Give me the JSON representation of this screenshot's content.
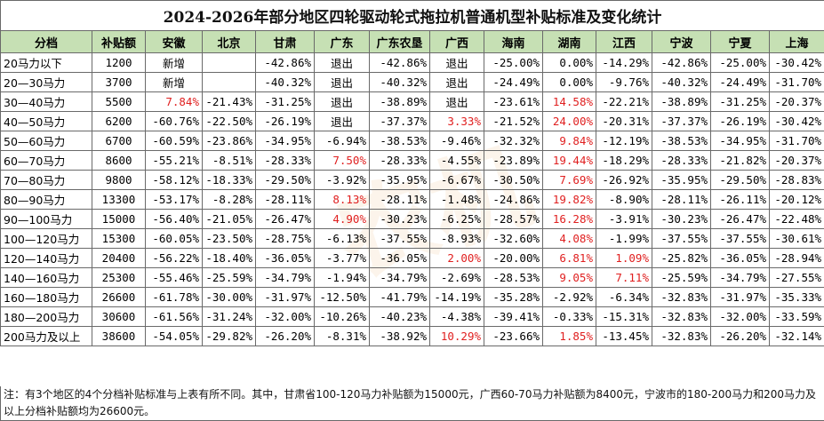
{
  "title": "2024-2026年部分地区四轮驱动轮式拖拉机普通机型补贴标准及变化统计",
  "watermark": "农机",
  "headers": [
    "分档",
    "补贴额",
    "安徽",
    "北京",
    "甘肃",
    "广东",
    "广东农垦",
    "广西",
    "海南",
    "湖南",
    "江西",
    "宁波",
    "宁夏",
    "上海"
  ],
  "rows": [
    [
      "20马力以下",
      "1200",
      "新增",
      "",
      "-42.86%",
      "退出",
      "-42.86%",
      "退出",
      "-25.00%",
      "0.00%",
      "-14.29%",
      "-42.86%",
      "-25.00%",
      "-30.42%"
    ],
    [
      "20—30马力",
      "3700",
      "新增",
      "",
      "-40.32%",
      "退出",
      "-40.32%",
      "退出",
      "-24.49%",
      "0.00%",
      "-9.76%",
      "-40.32%",
      "-24.49%",
      "-31.70%"
    ],
    [
      "30—40马力",
      "5500",
      "7.84%",
      "-21.43%",
      "-31.25%",
      "退出",
      "-38.89%",
      "退出",
      "-23.61%",
      "14.58%",
      "-22.21%",
      "-38.89%",
      "-31.25%",
      "-20.37%"
    ],
    [
      "40—50马力",
      "6200",
      "-60.76%",
      "-22.50%",
      "-26.19%",
      "退出",
      "-37.37%",
      "3.33%",
      "-21.52%",
      "24.00%",
      "-20.31%",
      "-37.37%",
      "-26.19%",
      "-30.42%"
    ],
    [
      "50—60马力",
      "6700",
      "-60.59%",
      "-23.86%",
      "-34.95%",
      "-6.94%",
      "-38.53%",
      "-9.46%",
      "-32.32%",
      "9.84%",
      "-12.19%",
      "-38.53%",
      "-34.95%",
      "-31.70%"
    ],
    [
      "60—70马力",
      "8600",
      "-55.21%",
      "-8.51%",
      "-28.33%",
      "7.50%",
      "-28.33%",
      "-4.55%",
      "-23.89%",
      "19.44%",
      "-18.29%",
      "-28.33%",
      "-21.82%",
      "-20.37%"
    ],
    [
      "70—80马力",
      "9800",
      "-58.12%",
      "-18.33%",
      "-29.50%",
      "-3.92%",
      "-35.95%",
      "-6.67%",
      "-30.50%",
      "7.69%",
      "-26.92%",
      "-35.95%",
      "-29.50%",
      "-28.83%"
    ],
    [
      "80—90马力",
      "13300",
      "-53.17%",
      "-8.28%",
      "-28.11%",
      "8.13%",
      "-28.11%",
      "-1.48%",
      "-24.86%",
      "19.82%",
      "-8.90%",
      "-28.11%",
      "-26.11%",
      "-20.12%"
    ],
    [
      "90—100马力",
      "15000",
      "-56.40%",
      "-21.05%",
      "-26.47%",
      "4.90%",
      "-30.23%",
      "-6.25%",
      "-28.57%",
      "16.28%",
      "-3.91%",
      "-30.23%",
      "-26.47%",
      "-22.48%"
    ],
    [
      "100—120马力",
      "15300",
      "-60.05%",
      "-23.50%",
      "-28.75%",
      "-6.13%",
      "-37.55%",
      "-8.93%",
      "-32.60%",
      "4.08%",
      "-1.99%",
      "-37.55%",
      "-37.55%",
      "-30.61%"
    ],
    [
      "120—140马力",
      "20400",
      "-56.22%",
      "-18.40%",
      "-36.05%",
      "-3.77%",
      "-36.05%",
      "2.00%",
      "-20.00%",
      "6.81%",
      "1.09%",
      "-25.82%",
      "-36.05%",
      "-28.94%"
    ],
    [
      "140—160马力",
      "25300",
      "-55.46%",
      "-25.59%",
      "-34.79%",
      "-1.94%",
      "-34.79%",
      "-2.69%",
      "-28.53%",
      "9.05%",
      "7.11%",
      "-25.59%",
      "-34.79%",
      "-27.55%"
    ],
    [
      "160—180马力",
      "26600",
      "-61.78%",
      "-30.00%",
      "-31.97%",
      "-12.50%",
      "-41.79%",
      "-14.19%",
      "-35.28%",
      "-2.92%",
      "-6.34%",
      "-32.83%",
      "-31.97%",
      "-35.33%"
    ],
    [
      "180—200马力",
      "30600",
      "-61.56%",
      "-31.24%",
      "-32.00%",
      "-10.26%",
      "-40.23%",
      "-4.38%",
      "-39.41%",
      "-0.33%",
      "-15.31%",
      "-32.83%",
      "-32.00%",
      "-33.59%"
    ],
    [
      "200马力及以上",
      "38600",
      "-54.05%",
      "-29.82%",
      "-26.20%",
      "-8.31%",
      "-38.92%",
      "10.29%",
      "-23.66%",
      "1.85%",
      "-13.45%",
      "-32.83%",
      "-26.20%",
      "-32.14%"
    ]
  ],
  "note": "注：有3个地区的4个分档补贴标准与上表有所不同。其中，甘肃省100-120马力补贴额为15000元，广西60-70马力补贴额为8400元，宁波市的180-200马力和200马力及以上分档补贴额均为26600元。",
  "colors": {
    "header_bg": "#c6e0b4",
    "positive_text": "#e02020",
    "border": "#6a6a6a"
  }
}
